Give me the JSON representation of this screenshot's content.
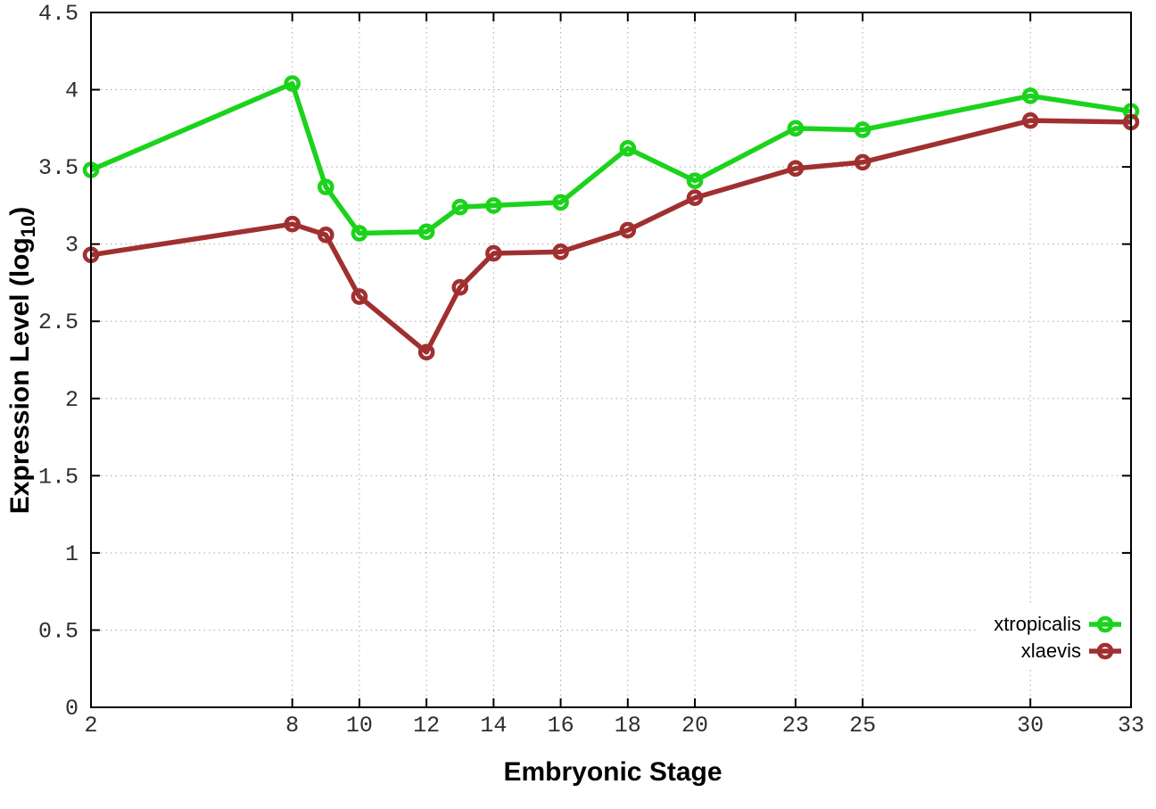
{
  "chart_data": {
    "type": "line",
    "title": "",
    "xlabel": "Embryonic Stage",
    "ylabel": "Expression Level (log10)",
    "ylabel_parts": {
      "prefix": "Expression Level (log",
      "sub": "10",
      "suffix": ")"
    },
    "x": [
      2,
      8,
      9,
      10,
      12,
      13,
      14,
      16,
      18,
      20,
      23,
      25,
      30,
      33
    ],
    "series": [
      {
        "name": "xtropicalis",
        "color": "#1bd31b",
        "values": [
          3.48,
          4.04,
          3.37,
          3.07,
          3.08,
          3.24,
          3.25,
          3.27,
          3.62,
          3.41,
          3.75,
          3.74,
          3.96,
          3.86
        ]
      },
      {
        "name": "xlaevis",
        "color": "#a03030",
        "values": [
          2.93,
          3.13,
          3.06,
          2.66,
          2.3,
          2.72,
          2.94,
          2.95,
          3.09,
          3.3,
          3.49,
          3.53,
          3.8,
          3.79
        ]
      }
    ],
    "xticks": [
      2,
      8,
      10,
      12,
      14,
      16,
      18,
      20,
      23,
      25,
      30,
      33
    ],
    "x_tick_labels": [
      "2",
      "8",
      "10",
      "12",
      "14",
      "16",
      "18",
      "20",
      "23",
      "25",
      "30",
      "33"
    ],
    "yticks": [
      0,
      0.5,
      1,
      1.5,
      2,
      2.5,
      3,
      3.5,
      4,
      4.5
    ],
    "y_tick_labels": [
      "0",
      "0.5",
      "1",
      "1.5",
      "2",
      "2.5",
      "3",
      "3.5",
      "4",
      "4.5"
    ],
    "xlim": [
      2,
      33
    ],
    "ylim": [
      0,
      4.5
    ],
    "grid": true,
    "legend_position": "bottom-right",
    "background_color": "#ffffff",
    "grid_color": "#a8a8a8",
    "axis_color": "#000000"
  }
}
